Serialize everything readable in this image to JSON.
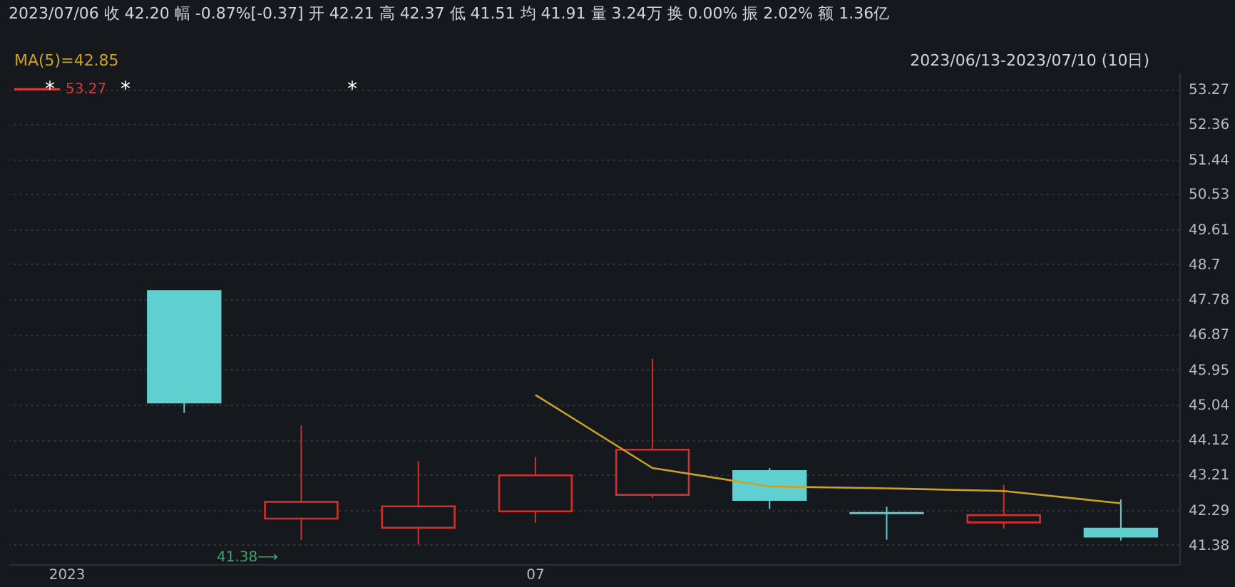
{
  "chart_data": {
    "type": "candlestick",
    "title": "2023/07/06  收 42.20  幅 -0.87%[-0.37]  开 42.21  高 42.37  低 41.51  均 41.91  量 3.24万  换 0.00%  振 2.02%  额 1.36亿",
    "subtitle": "2023/06/13-2023/07/10 (10日)",
    "categories": [
      "2023",
      null,
      null,
      null,
      "07",
      null,
      null,
      null,
      null,
      null
    ],
    "ohlc": [
      null,
      [
        48.0,
        48.0,
        44.82,
        45.09
      ],
      [
        42.06,
        44.49,
        41.5,
        42.5
      ],
      [
        41.82,
        43.56,
        41.38,
        42.38
      ],
      [
        42.25,
        43.67,
        41.95,
        43.19
      ],
      [
        42.68,
        46.23,
        42.6,
        43.86
      ],
      [
        43.3,
        43.38,
        42.31,
        42.55
      ],
      [
        42.21,
        42.37,
        41.51,
        42.2
      ],
      [
        41.96,
        42.94,
        41.8,
        42.15
      ],
      [
        41.8,
        42.56,
        41.49,
        41.59
      ]
    ],
    "colors": [
      null,
      "#5fcfd0",
      "#d0312d",
      "#d0312d",
      "#d0312d",
      "#d0312d",
      "#5fcfd0",
      "#5fcfd0",
      "#d0312d",
      "#5fcfd0"
    ],
    "series": [
      {
        "name": "MA(5)=42.85",
        "type": "line",
        "color": "#c9a227",
        "values": [
          null,
          null,
          null,
          null,
          45.29,
          43.38,
          42.9,
          42.85,
          42.78,
          42.46
        ]
      }
    ],
    "ref_lines": [
      {
        "axis": "y",
        "value": 53.27,
        "label": "53.27",
        "color": "#e03a30"
      }
    ],
    "annotations": [
      "*",
      "*",
      "*",
      "41.38⟶"
    ],
    "ylim": [
      40.87,
      53.7
    ],
    "yticks": [
      41.38,
      42.29,
      43.21,
      44.12,
      45.04,
      45.95,
      46.87,
      47.78,
      48.7,
      49.61,
      50.53,
      51.44,
      52.36,
      53.27
    ],
    "grid": "y",
    "legend": "top left"
  }
}
